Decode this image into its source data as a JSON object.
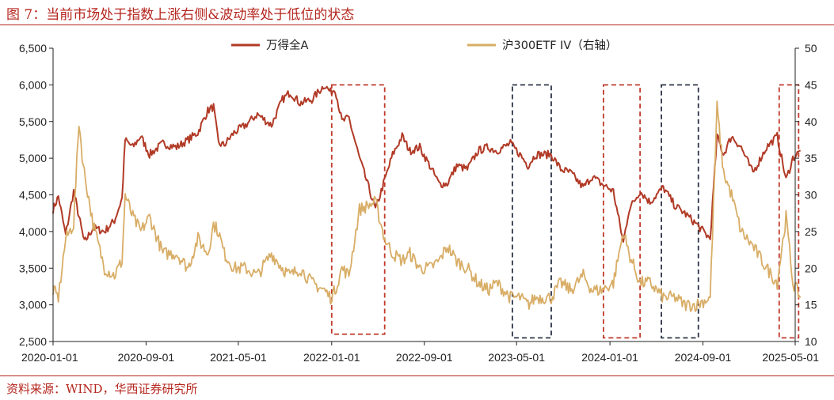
{
  "figure": {
    "title": "图 7：当前市场处于指数上涨右侧&波动率处于低位的状态",
    "source": "资料来源：WIND，华西证券研究所"
  },
  "chart_data": {
    "type": "line",
    "title": "",
    "x_range": [
      "2020-01-01",
      "2025-05-01"
    ],
    "x_ticks": [
      "2020-01-01",
      "2020-09-01",
      "2021-05-01",
      "2022-01-01",
      "2022-09-01",
      "2023-05-01",
      "2024-01-01",
      "2024-09-01",
      "2025-05-01"
    ],
    "y_left": {
      "min": 2500,
      "max": 6500,
      "ticks": [
        "2,500",
        "3,000",
        "3,500",
        "4,000",
        "4,500",
        "5,000",
        "5,500",
        "6,000",
        "6,500"
      ]
    },
    "y_right": {
      "min": 10,
      "max": 50,
      "ticks": [
        "10",
        "15",
        "20",
        "25",
        "30",
        "35",
        "40",
        "45",
        "50"
      ]
    },
    "legend_placement": "top",
    "grid": false,
    "series": [
      {
        "name": "万得全A",
        "axis": "left",
        "color": "#b13a26",
        "points": [
          [
            "2020-01-01",
            4300
          ],
          [
            "2020-01-15",
            4480
          ],
          [
            "2020-02-03",
            3950
          ],
          [
            "2020-02-24",
            4550
          ],
          [
            "2020-03-09",
            4200
          ],
          [
            "2020-03-23",
            3850
          ],
          [
            "2020-04-15",
            4050
          ],
          [
            "2020-05-15",
            4000
          ],
          [
            "2020-06-10",
            4150
          ],
          [
            "2020-06-30",
            4450
          ],
          [
            "2020-07-08",
            5250
          ],
          [
            "2020-07-28",
            5150
          ],
          [
            "2020-08-18",
            5300
          ],
          [
            "2020-09-10",
            5050
          ],
          [
            "2020-10-15",
            5200
          ],
          [
            "2020-11-20",
            5150
          ],
          [
            "2020-12-20",
            5250
          ],
          [
            "2021-01-15",
            5350
          ],
          [
            "2021-02-10",
            5650
          ],
          [
            "2021-02-25",
            5700
          ],
          [
            "2021-03-10",
            5200
          ],
          [
            "2021-03-25",
            5180
          ],
          [
            "2021-04-20",
            5350
          ],
          [
            "2021-05-20",
            5450
          ],
          [
            "2021-06-20",
            5600
          ],
          [
            "2021-07-27",
            5450
          ],
          [
            "2021-08-25",
            5800
          ],
          [
            "2021-09-14",
            5900
          ],
          [
            "2021-10-10",
            5750
          ],
          [
            "2021-11-10",
            5800
          ],
          [
            "2021-12-13",
            6000
          ],
          [
            "2021-12-29",
            5900
          ],
          [
            "2022-01-10",
            5950
          ],
          [
            "2022-01-28",
            5500
          ],
          [
            "2022-02-15",
            5550
          ],
          [
            "2022-03-15",
            5000
          ],
          [
            "2022-04-26",
            4300
          ],
          [
            "2022-05-20",
            4700
          ],
          [
            "2022-06-10",
            5050
          ],
          [
            "2022-07-05",
            5300
          ],
          [
            "2022-07-25",
            5100
          ],
          [
            "2022-08-20",
            5150
          ],
          [
            "2022-09-15",
            4900
          ],
          [
            "2022-10-10",
            4650
          ],
          [
            "2022-10-31",
            4650
          ],
          [
            "2022-11-25",
            4900
          ],
          [
            "2022-12-23",
            4850
          ],
          [
            "2023-01-20",
            5100
          ],
          [
            "2023-02-15",
            5150
          ],
          [
            "2023-03-10",
            5100
          ],
          [
            "2023-04-15",
            5200
          ],
          [
            "2023-05-10",
            5050
          ],
          [
            "2023-05-31",
            4900
          ],
          [
            "2023-06-20",
            5050
          ],
          [
            "2023-07-31",
            5050
          ],
          [
            "2023-08-25",
            4850
          ],
          [
            "2023-09-20",
            4800
          ],
          [
            "2023-10-23",
            4600
          ],
          [
            "2023-11-15",
            4750
          ],
          [
            "2023-12-10",
            4650
          ],
          [
            "2024-01-10",
            4550
          ],
          [
            "2024-02-05",
            3850
          ],
          [
            "2024-02-20",
            4300
          ],
          [
            "2024-03-20",
            4550
          ],
          [
            "2024-04-15",
            4400
          ],
          [
            "2024-05-20",
            4600
          ],
          [
            "2024-06-20",
            4350
          ],
          [
            "2024-07-15",
            4250
          ],
          [
            "2024-08-15",
            4100
          ],
          [
            "2024-09-20",
            3900
          ],
          [
            "2024-10-08",
            5300
          ],
          [
            "2024-10-25",
            5050
          ],
          [
            "2024-11-15",
            5300
          ],
          [
            "2024-12-10",
            5150
          ],
          [
            "2025-01-10",
            4800
          ],
          [
            "2025-02-15",
            5150
          ],
          [
            "2025-03-15",
            5300
          ],
          [
            "2025-04-07",
            4700
          ],
          [
            "2025-04-25",
            5000
          ],
          [
            "2025-05-15",
            5100
          ]
        ]
      },
      {
        "name": "沪300ETF IV（右轴）",
        "axis": "right",
        "color": "#d8ad66",
        "points": [
          [
            "2020-01-01",
            17
          ],
          [
            "2020-01-15",
            16
          ],
          [
            "2020-02-03",
            24
          ],
          [
            "2020-02-24",
            26
          ],
          [
            "2020-03-09",
            40
          ],
          [
            "2020-03-20",
            34
          ],
          [
            "2020-04-15",
            26
          ],
          [
            "2020-05-15",
            20
          ],
          [
            "2020-06-10",
            19
          ],
          [
            "2020-06-30",
            21
          ],
          [
            "2020-07-08",
            30
          ],
          [
            "2020-07-28",
            27
          ],
          [
            "2020-08-18",
            25
          ],
          [
            "2020-09-10",
            27
          ],
          [
            "2020-10-15",
            22
          ],
          [
            "2020-11-20",
            22
          ],
          [
            "2020-12-20",
            20
          ],
          [
            "2021-01-15",
            24
          ],
          [
            "2021-02-10",
            22
          ],
          [
            "2021-02-25",
            26
          ],
          [
            "2021-03-10",
            25
          ],
          [
            "2021-03-25",
            22
          ],
          [
            "2021-04-20",
            20
          ],
          [
            "2021-05-20",
            20
          ],
          [
            "2021-06-20",
            19
          ],
          [
            "2021-07-27",
            22
          ],
          [
            "2021-08-25",
            20
          ],
          [
            "2021-09-14",
            19
          ],
          [
            "2021-10-10",
            20
          ],
          [
            "2021-11-10",
            18
          ],
          [
            "2021-12-13",
            17
          ],
          [
            "2021-12-29",
            16
          ],
          [
            "2022-01-10",
            17
          ],
          [
            "2022-01-28",
            20
          ],
          [
            "2022-02-15",
            19
          ],
          [
            "2022-03-15",
            28
          ],
          [
            "2022-04-26",
            29
          ],
          [
            "2022-05-20",
            24
          ],
          [
            "2022-06-10",
            22
          ],
          [
            "2022-07-05",
            21
          ],
          [
            "2022-07-25",
            22
          ],
          [
            "2022-08-20",
            20
          ],
          [
            "2022-09-15",
            20
          ],
          [
            "2022-10-10",
            21
          ],
          [
            "2022-10-31",
            23
          ],
          [
            "2022-11-25",
            21
          ],
          [
            "2022-12-23",
            20
          ],
          [
            "2023-01-20",
            18
          ],
          [
            "2023-02-15",
            17
          ],
          [
            "2023-03-10",
            18
          ],
          [
            "2023-04-15",
            16
          ],
          [
            "2023-05-10",
            16
          ],
          [
            "2023-05-31",
            15
          ],
          [
            "2023-06-20",
            16
          ],
          [
            "2023-07-31",
            16
          ],
          [
            "2023-08-25",
            18
          ],
          [
            "2023-09-20",
            17
          ],
          [
            "2023-10-23",
            19
          ],
          [
            "2023-11-15",
            17
          ],
          [
            "2023-12-10",
            17
          ],
          [
            "2024-01-10",
            18
          ],
          [
            "2024-02-05",
            25
          ],
          [
            "2024-02-20",
            22
          ],
          [
            "2024-03-20",
            18
          ],
          [
            "2024-04-15",
            18
          ],
          [
            "2024-05-20",
            16
          ],
          [
            "2024-06-20",
            16
          ],
          [
            "2024-07-15",
            15
          ],
          [
            "2024-08-15",
            15
          ],
          [
            "2024-09-20",
            16
          ],
          [
            "2024-10-08",
            42
          ],
          [
            "2024-10-25",
            33
          ],
          [
            "2024-11-15",
            30
          ],
          [
            "2024-12-10",
            25
          ],
          [
            "2025-01-10",
            23
          ],
          [
            "2025-02-15",
            20
          ],
          [
            "2025-03-15",
            18
          ],
          [
            "2025-04-07",
            27
          ],
          [
            "2025-04-25",
            18
          ],
          [
            "2025-05-15",
            16
          ]
        ]
      }
    ],
    "highlight_boxes": [
      {
        "from": "2022-01-01",
        "to": "2022-05-20",
        "y_top_left": 6000,
        "y_bottom_left": 2600,
        "color": "#c0392b"
      },
      {
        "from": "2023-04-20",
        "to": "2023-07-31",
        "y_top_left": 6000,
        "y_bottom_left": 2550,
        "color": "#2d3447"
      },
      {
        "from": "2023-12-15",
        "to": "2024-03-20",
        "y_top_left": 6000,
        "y_bottom_left": 2550,
        "color": "#c0392b"
      },
      {
        "from": "2024-05-15",
        "to": "2024-08-20",
        "y_top_left": 6000,
        "y_bottom_left": 2550,
        "color": "#2d3447"
      },
      {
        "from": "2025-03-20",
        "to": "2025-05-10",
        "y_top_left": 6000,
        "y_bottom_left": 2550,
        "color": "#c0392b"
      }
    ]
  }
}
